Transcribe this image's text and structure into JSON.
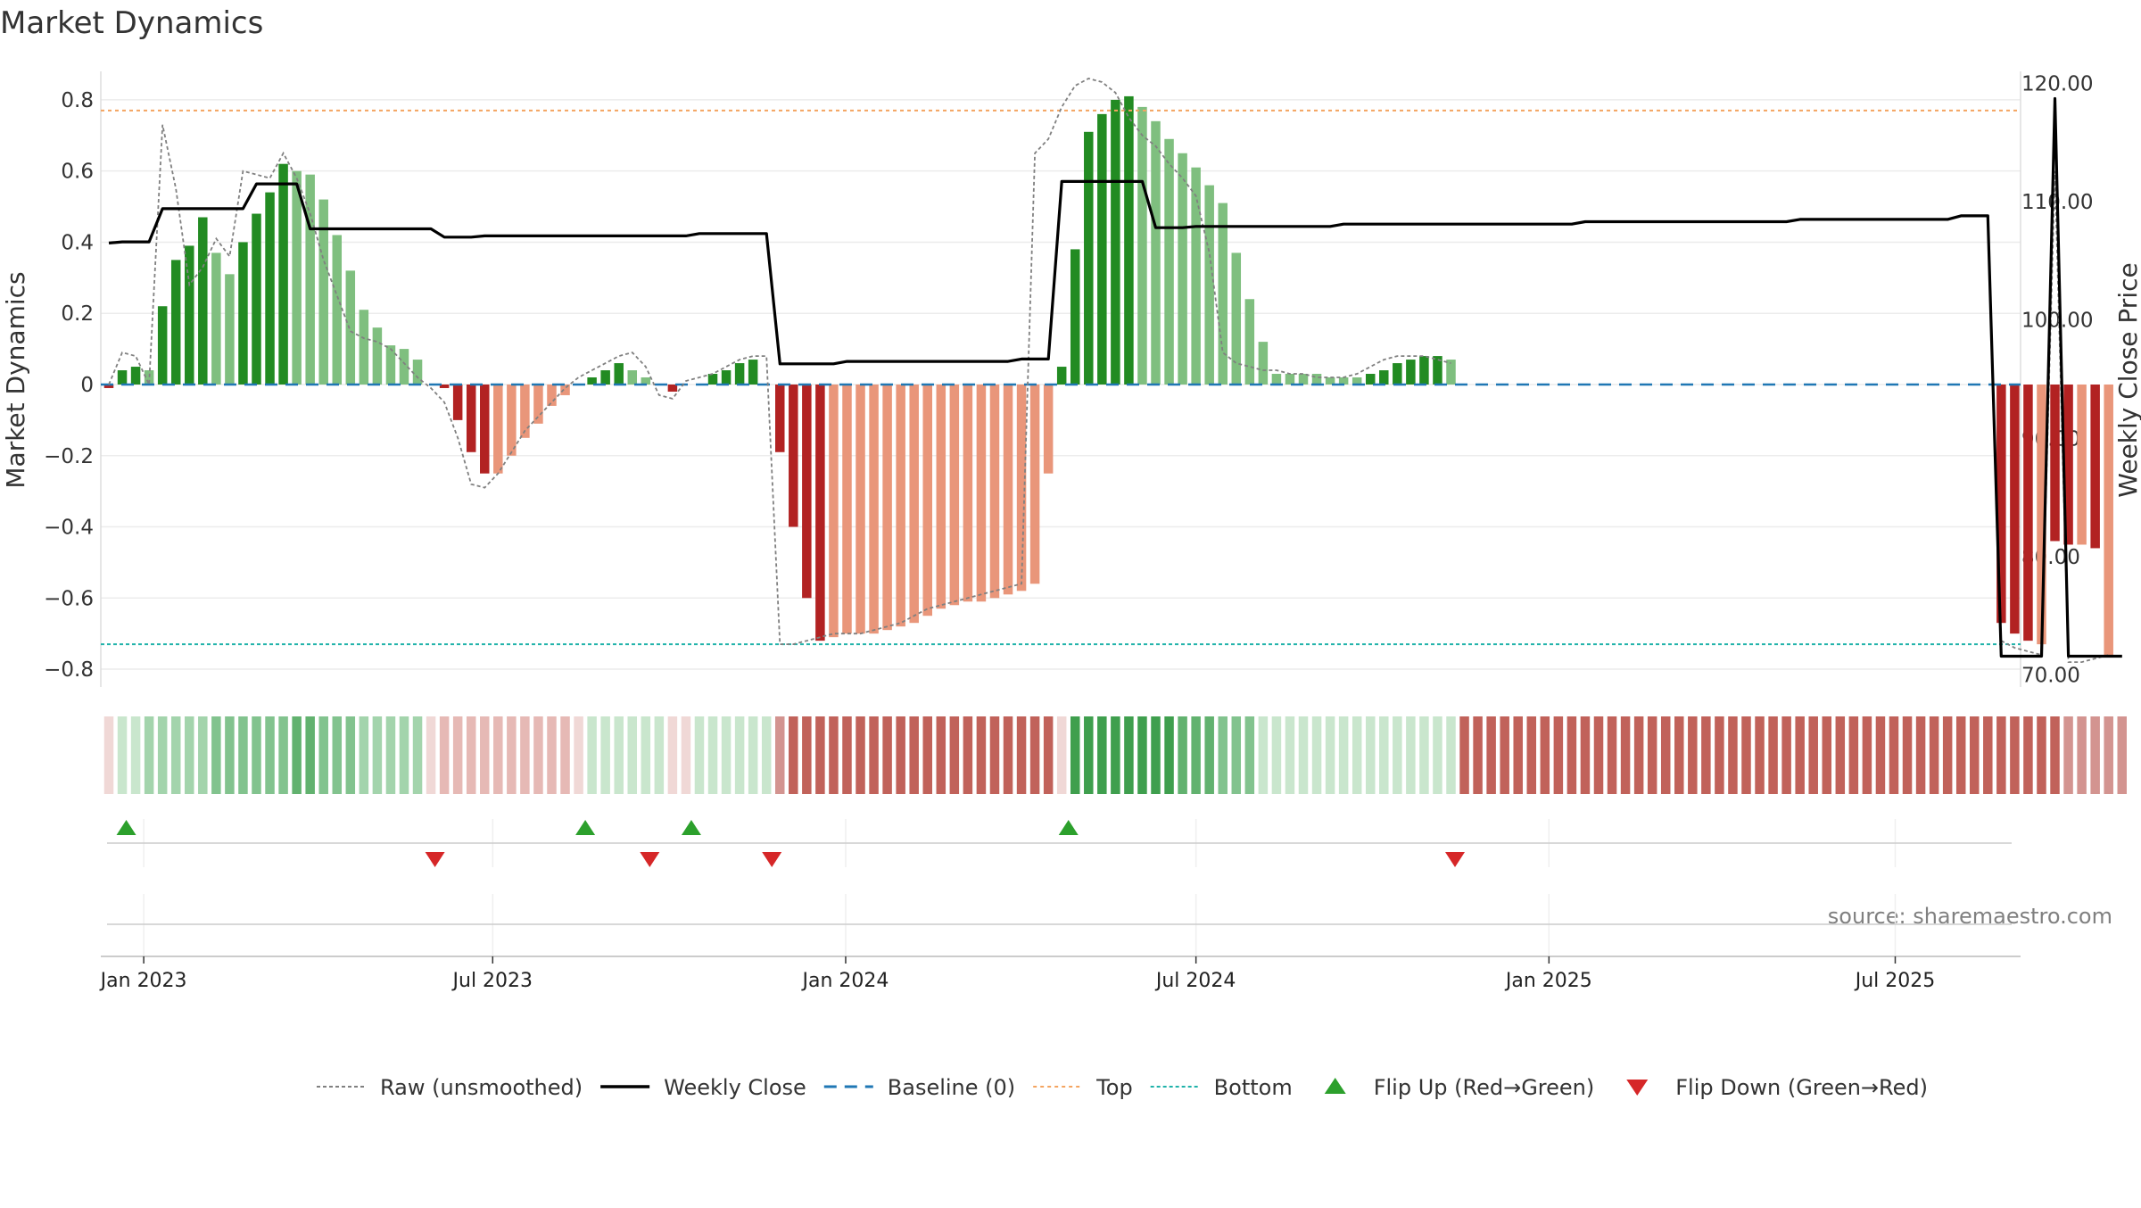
{
  "chart_data": {
    "type": "bar",
    "title": "Market Dynamics",
    "ylabel_left": "Market Dynamics",
    "ylabel_right": "Weekly Close Price",
    "source": "source: sharemaestro.com",
    "ylim_left": [
      -0.85,
      0.88
    ],
    "ylim_right": [
      69,
      121
    ],
    "yticks_left": [
      -0.8,
      -0.6,
      -0.4,
      -0.2,
      0,
      0.2,
      0.4,
      0.6,
      0.8
    ],
    "yticks_left_labels": [
      "−0.8",
      "−0.6",
      "−0.4",
      "−0.2",
      "0",
      "0.2",
      "0.4",
      "0.6",
      "0.8"
    ],
    "yticks_right": [
      70,
      80,
      90,
      100,
      110,
      120
    ],
    "yticks_right_labels": [
      "70.00",
      "80.00",
      "90.00",
      "100.00",
      "110.00",
      "120.00"
    ],
    "xticks_labels": [
      "Jan 2023",
      "Jul 2023",
      "Jan 2024",
      "Jul 2024",
      "Jan 2025",
      "Jul 2025"
    ],
    "xticks_index": [
      2.6,
      28.6,
      54.9,
      81,
      107.3,
      133.1
    ],
    "top_level": 0.77,
    "bottom_level": -0.73,
    "colors": {
      "strong_green": "#228B22",
      "light_green": "#7fbf7f",
      "strong_red": "#b22222",
      "light_red": "#e9967a",
      "close_line": "#000000",
      "raw_line": "#808080",
      "baseline": "#1f77b4",
      "top": "#f4a460",
      "bottom": "#20b2aa",
      "flip_up": "#2ca02c",
      "flip_down": "#d62728"
    },
    "bars": [
      -0.01,
      0.04,
      0.05,
      0.04,
      0.22,
      0.35,
      0.39,
      0.47,
      0.37,
      0.31,
      0.4,
      0.48,
      0.54,
      0.62,
      0.6,
      0.59,
      0.52,
      0.42,
      0.32,
      0.21,
      0.16,
      0.11,
      0.1,
      0.07,
      0,
      -0.01,
      -0.1,
      -0.19,
      -0.25,
      -0.25,
      -0.2,
      -0.15,
      -0.11,
      -0.06,
      -0.03,
      0,
      0.02,
      0.04,
      0.06,
      0.04,
      0.02,
      0,
      -0.02,
      0,
      0,
      0.03,
      0.04,
      0.06,
      0.07,
      0,
      -0.19,
      -0.4,
      -0.6,
      -0.72,
      -0.71,
      -0.7,
      -0.7,
      -0.7,
      -0.69,
      -0.68,
      -0.67,
      -0.65,
      -0.63,
      -0.62,
      -0.61,
      -0.61,
      -0.6,
      -0.59,
      -0.58,
      -0.56,
      -0.25,
      0.05,
      0.38,
      0.71,
      0.76,
      0.8,
      0.81,
      0.78,
      0.74,
      0.69,
      0.65,
      0.61,
      0.56,
      0.51,
      0.37,
      0.24,
      0.12,
      0.03,
      0.03,
      0.03,
      0.03,
      0.02,
      0.02,
      0.02,
      0.03,
      0.04,
      0.06,
      0.07,
      0.08,
      0.08,
      0.07,
      null,
      null,
      null,
      null,
      null,
      null,
      null,
      null,
      null,
      null,
      null,
      null,
      null,
      null,
      null,
      null,
      null,
      null,
      null,
      null,
      null,
      null,
      null,
      null,
      null,
      null,
      null,
      null,
      null,
      null,
      null,
      null,
      null,
      null,
      null,
      null,
      null,
      null,
      null,
      null,
      -0.67,
      -0.7,
      -0.72,
      -0.73,
      -0.44,
      -0.45,
      -0.45,
      -0.46,
      -0.76
    ],
    "bar_strength": [
      "s",
      "s",
      "s",
      "l",
      "s",
      "s",
      "s",
      "s",
      "l",
      "l",
      "s",
      "s",
      "s",
      "s",
      "l",
      "l",
      "l",
      "l",
      "l",
      "l",
      "l",
      "l",
      "l",
      "l",
      "l",
      "s",
      "s",
      "s",
      "s",
      "l",
      "l",
      "l",
      "l",
      "l",
      "l",
      "l",
      "s",
      "s",
      "s",
      "l",
      "l",
      "l",
      "s",
      "l",
      "l",
      "s",
      "s",
      "s",
      "s",
      "l",
      "s",
      "s",
      "s",
      "s",
      "l",
      "l",
      "l",
      "l",
      "l",
      "l",
      "l",
      "l",
      "l",
      "l",
      "l",
      "l",
      "l",
      "l",
      "l",
      "l",
      "l",
      "s",
      "s",
      "s",
      "s",
      "s",
      "s",
      "l",
      "l",
      "l",
      "l",
      "l",
      "l",
      "l",
      "l",
      "l",
      "l",
      "l",
      "l",
      "l",
      "l",
      "l",
      "l",
      "l",
      "s",
      "s",
      "s",
      "s",
      "s",
      "s",
      "l",
      "l",
      "l",
      "l",
      "l",
      "l",
      "l",
      "l",
      "l",
      "l",
      "l",
      "l",
      "l",
      "l",
      "l",
      "l",
      "l",
      "l",
      "l",
      "l",
      "l",
      "l",
      "l",
      "l",
      "l",
      "l",
      "l",
      "l",
      "l",
      "l",
      "l",
      "l",
      "l",
      "l",
      "l",
      "l",
      "l",
      "l",
      "l",
      "l",
      "s",
      "s",
      "s",
      "s",
      "l",
      "s",
      "s",
      "l",
      "s"
    ],
    "raw": [
      0,
      0.09,
      0.08,
      0,
      0.73,
      0.55,
      0.28,
      0.33,
      0.41,
      0.36,
      0.6,
      0.59,
      0.58,
      0.65,
      0.58,
      0.48,
      0.35,
      0.25,
      0.15,
      0.13,
      0.12,
      0.1,
      0.06,
      0.02,
      -0.01,
      -0.05,
      -0.15,
      -0.28,
      -0.29,
      -0.25,
      -0.19,
      -0.13,
      -0.09,
      -0.05,
      -0.01,
      0.02,
      0.04,
      0.06,
      0.08,
      0.09,
      0.05,
      -0.03,
      -0.04,
      0.01,
      0.02,
      0.03,
      0.05,
      0.07,
      0.08,
      0.08,
      -0.73,
      -0.73,
      -0.72,
      -0.71,
      -0.7,
      -0.7,
      -0.7,
      -0.69,
      -0.68,
      -0.67,
      -0.65,
      -0.63,
      -0.62,
      -0.61,
      -0.6,
      -0.59,
      -0.58,
      -0.57,
      -0.56,
      0.65,
      0.69,
      0.78,
      0.84,
      0.86,
      0.85,
      0.82,
      0.75,
      0.7,
      0.67,
      0.62,
      0.58,
      0.53,
      0.37,
      0.09,
      0.06,
      0.05,
      0.04,
      0.04,
      0.03,
      0.03,
      0.02,
      0.02,
      0.02,
      0.03,
      0.05,
      0.07,
      0.08,
      0.08,
      0.08,
      0.07,
      0.06,
      null,
      null,
      null,
      null,
      null,
      null,
      null,
      null,
      null,
      null,
      null,
      null,
      null,
      null,
      null,
      null,
      null,
      null,
      null,
      null,
      null,
      null,
      null,
      null,
      null,
      null,
      null,
      null,
      null,
      null,
      null,
      null,
      null,
      null,
      null,
      null,
      null,
      null,
      null,
      null,
      -0.72,
      -0.74,
      -0.75,
      -0.76,
      0.6,
      -0.78,
      -0.78,
      -0.77,
      -0.76
    ],
    "close": [
      106.5,
      106.6,
      106.6,
      106.6,
      109.4,
      109.4,
      109.4,
      109.4,
      109.4,
      109.4,
      109.4,
      111.5,
      111.5,
      111.5,
      111.5,
      107.7,
      107.7,
      107.7,
      107.7,
      107.7,
      107.7,
      107.7,
      107.7,
      107.7,
      107.7,
      107.0,
      107.0,
      107.0,
      107.1,
      107.1,
      107.1,
      107.1,
      107.1,
      107.1,
      107.1,
      107.1,
      107.1,
      107.1,
      107.1,
      107.1,
      107.1,
      107.1,
      107.1,
      107.1,
      107.3,
      107.3,
      107.3,
      107.3,
      107.3,
      107.3,
      96.3,
      96.3,
      96.3,
      96.3,
      96.3,
      96.5,
      96.5,
      96.5,
      96.5,
      96.5,
      96.5,
      96.5,
      96.5,
      96.5,
      96.5,
      96.5,
      96.5,
      96.5,
      96.7,
      96.7,
      96.7,
      111.7,
      111.7,
      111.7,
      111.7,
      111.7,
      111.7,
      111.7,
      107.8,
      107.8,
      107.8,
      107.9,
      107.9,
      107.9,
      107.9,
      107.9,
      107.9,
      107.9,
      107.9,
      107.9,
      107.9,
      107.9,
      108.1,
      108.1,
      108.1,
      108.1,
      108.1,
      108.1,
      108.1,
      108.1,
      108.1,
      108.1,
      108.1,
      108.1,
      108.1,
      108.1,
      108.1,
      108.1,
      108.1,
      108.1,
      108.3,
      108.3,
      108.3,
      108.3,
      108.3,
      108.3,
      108.3,
      108.3,
      108.3,
      108.3,
      108.3,
      108.3,
      108.3,
      108.3,
      108.3,
      108.3,
      108.5,
      108.5,
      108.5,
      108.5,
      108.5,
      108.5,
      108.5,
      108.5,
      108.5,
      108.5,
      108.5,
      108.5,
      108.8,
      108.8,
      108.8,
      71.6,
      71.6,
      71.6,
      71.6,
      118.7,
      71.6,
      71.6,
      71.6,
      71.6,
      71.6
    ],
    "regime": [
      -1,
      1,
      1,
      2,
      2,
      2,
      2,
      2,
      3,
      3,
      3,
      3,
      3,
      3,
      4,
      4,
      3,
      3,
      3,
      2,
      2,
      2,
      2,
      2,
      -1,
      -2,
      -2,
      -2,
      -2,
      -2,
      -2,
      -2,
      -2,
      -2,
      -2,
      -1,
      1,
      1,
      1,
      1,
      1,
      1,
      -1,
      -1,
      1,
      1,
      1,
      1,
      1,
      1,
      -3,
      -4,
      -4,
      -4,
      -4,
      -4,
      -4,
      -4,
      -4,
      -4,
      -4,
      -4,
      -4,
      -4,
      -4,
      -4,
      -4,
      -4,
      -4,
      -4,
      -4,
      -1,
      5,
      5,
      5,
      5,
      5,
      5,
      5,
      5,
      4,
      4,
      4,
      3,
      3,
      3,
      1,
      1,
      1,
      1,
      1,
      1,
      1,
      1,
      1,
      1,
      1,
      1,
      1,
      1,
      1,
      -4,
      -4,
      -4,
      -4,
      -4,
      -4,
      -4,
      -4,
      -4,
      -4,
      -4,
      -4,
      -4,
      -4,
      -4,
      -4,
      -4,
      -4,
      -4,
      -4,
      -4,
      -4,
      -4,
      -4,
      -4,
      -4,
      -4,
      -4,
      -4,
      -4,
      -4,
      -4,
      -4,
      -4,
      -4,
      -4,
      -4,
      -4,
      -4,
      -4,
      -4,
      -4,
      -4,
      -4,
      -4,
      -3,
      -3,
      -3,
      -3,
      -3
    ],
    "flip_up_index": [
      1.3,
      35.5,
      43.4,
      71.5
    ],
    "flip_down_index": [
      24.3,
      40.3,
      49.4,
      100.3
    ],
    "legend": [
      {
        "label": "Raw (unsmoothed)",
        "style": "raw"
      },
      {
        "label": "Weekly Close",
        "style": "close"
      },
      {
        "label": "Baseline (0)",
        "style": "baseline"
      },
      {
        "label": "Top",
        "style": "top"
      },
      {
        "label": "Bottom",
        "style": "bottom"
      },
      {
        "label": "Flip Up (Red→Green)",
        "style": "flip_up"
      },
      {
        "label": "Flip Down (Green→Red)",
        "style": "flip_down"
      }
    ],
    "legend_placement": "bottom-center",
    "grid": true
  }
}
